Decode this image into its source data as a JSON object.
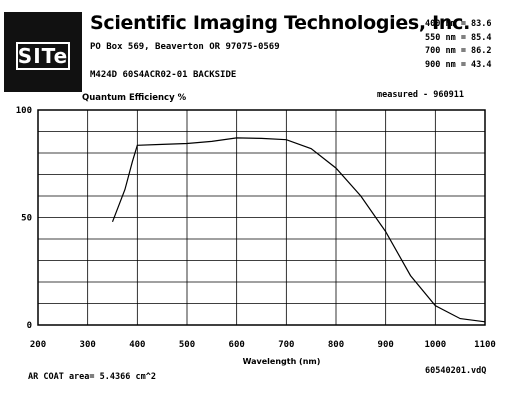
{
  "header": {
    "logo_text": "SITe",
    "company": "Scientific Imaging Technologies, Inc.",
    "address": "PO Box 569, Beaverton OR 97075-0569",
    "part": "M424D 60S4ACR02-01 BACKSIDE",
    "qe_summary": [
      "400 nm = 83.6",
      "550 nm = 85.4",
      "700 nm = 86.2",
      "900 nm = 43.4"
    ]
  },
  "footer": {
    "area_note": "AR COAT area= 5.4366 cm^2",
    "file_id": "60540201.vdQ"
  },
  "chart_data": {
    "type": "line",
    "title": "Quantum Efficiency %",
    "annotation": "measured - 960911",
    "xlabel": "Wavelength (nm)",
    "ylabel": "",
    "xlim": [
      200,
      1100
    ],
    "ylim": [
      0,
      100
    ],
    "x_ticks": [
      200,
      300,
      400,
      500,
      600,
      700,
      800,
      900,
      1000,
      1100
    ],
    "y_ticks": [
      0,
      50,
      100
    ],
    "grid": true,
    "series": [
      {
        "x": [
          350,
          375,
          390,
          400,
          450,
          500,
          550,
          600,
          650,
          700,
          750,
          800,
          850,
          900,
          950,
          1000,
          1050,
          1100
        ],
        "y": [
          48,
          63,
          76,
          83.6,
          84,
          84.4,
          85.4,
          87,
          86.8,
          86.2,
          82,
          73,
          60,
          43.4,
          23,
          9,
          3,
          1.5
        ]
      }
    ]
  }
}
